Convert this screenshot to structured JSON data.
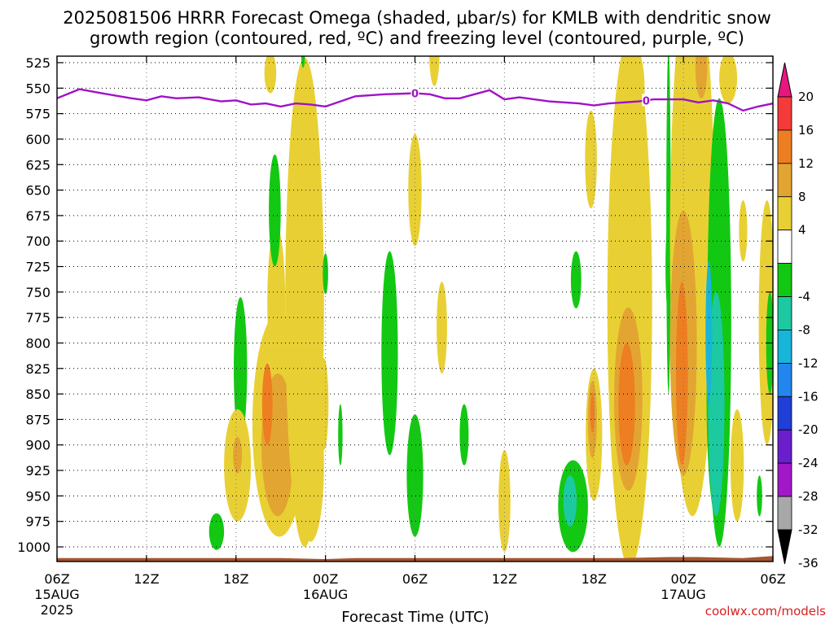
{
  "chart_data": {
    "type": "heatmap",
    "title_line1": "2025081506 HRRR Forecast Omega (shaded, μbar/s) for KMLB with dendritic snow",
    "title_line2": "growth region (contoured, red, ºC) and freezing level (contoured, purple, ºC)",
    "xlabel": "Forecast Time (UTC)",
    "credit": "coolwx.com/models",
    "x_ticks": [
      {
        "hour": 0,
        "label": "06Z",
        "sub1": "15AUG",
        "sub2": "2025"
      },
      {
        "hour": 6,
        "label": "12Z",
        "sub1": "",
        "sub2": ""
      },
      {
        "hour": 12,
        "label": "18Z",
        "sub1": "",
        "sub2": ""
      },
      {
        "hour": 18,
        "label": "00Z",
        "sub1": "16AUG",
        "sub2": ""
      },
      {
        "hour": 24,
        "label": "06Z",
        "sub1": "",
        "sub2": ""
      },
      {
        "hour": 30,
        "label": "12Z",
        "sub1": "",
        "sub2": ""
      },
      {
        "hour": 36,
        "label": "18Z",
        "sub1": "",
        "sub2": ""
      },
      {
        "hour": 42,
        "label": "00Z",
        "sub1": "17AUG",
        "sub2": ""
      },
      {
        "hour": 48,
        "label": "06Z",
        "sub1": "",
        "sub2": ""
      }
    ],
    "x_range_hours": [
      0,
      48
    ],
    "y_ticks_hpa": [
      525,
      550,
      575,
      600,
      625,
      650,
      675,
      700,
      725,
      750,
      775,
      800,
      825,
      850,
      875,
      900,
      925,
      950,
      975,
      1000
    ],
    "y_range_hpa": [
      515,
      1015
    ],
    "colorbar": {
      "labels": [
        "20",
        "16",
        "12",
        "8",
        "4",
        "-4",
        "-8",
        "-12",
        "-16",
        "-20",
        "-24",
        "-28",
        "-32",
        "-36"
      ],
      "segments": [
        {
          "lo": 20,
          "hi": 24,
          "color": "#e8177f"
        },
        {
          "lo": 16,
          "hi": 20,
          "color": "#f53a3a"
        },
        {
          "lo": 12,
          "hi": 16,
          "color": "#ee7e22"
        },
        {
          "lo": 8,
          "hi": 12,
          "color": "#e3a532"
        },
        {
          "lo": 4,
          "hi": 8,
          "color": "#e8d034"
        },
        {
          "lo": -4,
          "hi": 4,
          "color": "#ffffff"
        },
        {
          "lo": -8,
          "hi": -4,
          "color": "#13c813"
        },
        {
          "lo": -12,
          "hi": -8,
          "color": "#1dc9a0"
        },
        {
          "lo": -16,
          "hi": -12,
          "color": "#17b5d8"
        },
        {
          "lo": -20,
          "hi": -16,
          "color": "#2286ee"
        },
        {
          "lo": -24,
          "hi": -20,
          "color": "#1f3fd6"
        },
        {
          "lo": -28,
          "hi": -24,
          "color": "#6a1ecc"
        },
        {
          "lo": -32,
          "hi": -28,
          "color": "#a018c8"
        },
        {
          "lo": -36,
          "hi": -32,
          "color": "#a8a8a8"
        },
        {
          "lo": -40,
          "hi": -36,
          "color": "#000000"
        }
      ]
    },
    "freezing_level": {
      "color": "#a012c8",
      "contour_label": "0",
      "label_hours": [
        24,
        39.5
      ],
      "points": [
        [
          0,
          560
        ],
        [
          1.5,
          551
        ],
        [
          3,
          555
        ],
        [
          5,
          560
        ],
        [
          6,
          562
        ],
        [
          7,
          558
        ],
        [
          8,
          560
        ],
        [
          9.5,
          559
        ],
        [
          11,
          563
        ],
        [
          12,
          562
        ],
        [
          13,
          566
        ],
        [
          14,
          565
        ],
        [
          15,
          568
        ],
        [
          16,
          565
        ],
        [
          17,
          566
        ],
        [
          18,
          568
        ],
        [
          19,
          563
        ],
        [
          20,
          558
        ],
        [
          22,
          556
        ],
        [
          24,
          555
        ],
        [
          25,
          556
        ],
        [
          26,
          560
        ],
        [
          27,
          560
        ],
        [
          29,
          552
        ],
        [
          30,
          561
        ],
        [
          31,
          559
        ],
        [
          33,
          563
        ],
        [
          35,
          565
        ],
        [
          36,
          567
        ],
        [
          37,
          565
        ],
        [
          39,
          563
        ],
        [
          40,
          561
        ],
        [
          42,
          561
        ],
        [
          43,
          564
        ],
        [
          44,
          562
        ],
        [
          45,
          565
        ],
        [
          46,
          572
        ],
        [
          47,
          568
        ],
        [
          48,
          565
        ]
      ]
    },
    "omega_regions": [
      {
        "hour": 14.7,
        "p": 760,
        "dh": 0.6,
        "dp": 75,
        "value": 6
      },
      {
        "hour": 12.3,
        "p": 825,
        "dh": 0.45,
        "dp": 70,
        "value": -6
      },
      {
        "hour": 12.1,
        "p": 920,
        "dh": 0.9,
        "dp": 55,
        "value": 6
      },
      {
        "hour": 12.1,
        "p": 910,
        "dh": 0.3,
        "dp": 18,
        "value": 10
      },
      {
        "hour": 10.7,
        "p": 985,
        "dh": 0.5,
        "dp": 18,
        "value": -6
      },
      {
        "hour": 14.9,
        "p": 880,
        "dh": 1.8,
        "dp": 110,
        "value": 6
      },
      {
        "hour": 14.8,
        "p": 900,
        "dh": 1.1,
        "dp": 70,
        "value": 10
      },
      {
        "hour": 14.1,
        "p": 860,
        "dh": 0.35,
        "dp": 40,
        "value": 14
      },
      {
        "hour": 16.6,
        "p": 760,
        "dh": 1.3,
        "dp": 240,
        "value": 6
      },
      {
        "hour": 17.0,
        "p": 920,
        "dh": 0.9,
        "dp": 75,
        "value": 6
      },
      {
        "hour": 14.3,
        "p": 535,
        "dh": 0.4,
        "dp": 20,
        "value": 6
      },
      {
        "hour": 16.5,
        "p": 520,
        "dh": 0.12,
        "dp": 10,
        "value": -6
      },
      {
        "hour": 14.6,
        "p": 670,
        "dh": 0.4,
        "dp": 55,
        "value": -6
      },
      {
        "hour": 17.9,
        "p": 860,
        "dh": 0.3,
        "dp": 45,
        "value": 6
      },
      {
        "hour": 18.0,
        "p": 732,
        "dh": 0.18,
        "dp": 20,
        "value": -6
      },
      {
        "hour": 19.0,
        "p": 890,
        "dh": 0.15,
        "dp": 30,
        "value": -6
      },
      {
        "hour": 22.3,
        "p": 810,
        "dh": 0.55,
        "dp": 100,
        "value": -6
      },
      {
        "hour": 24.0,
        "p": 650,
        "dh": 0.45,
        "dp": 55,
        "value": 6
      },
      {
        "hour": 24.0,
        "p": 930,
        "dh": 0.55,
        "dp": 60,
        "value": -6
      },
      {
        "hour": 25.3,
        "p": 513,
        "dh": 0.35,
        "dp": 35,
        "value": 6
      },
      {
        "hour": 25.8,
        "p": 785,
        "dh": 0.35,
        "dp": 45,
        "value": 6
      },
      {
        "hour": 27.3,
        "p": 890,
        "dh": 0.3,
        "dp": 30,
        "value": -6
      },
      {
        "hour": 30.0,
        "p": 955,
        "dh": 0.4,
        "dp": 50,
        "value": 6
      },
      {
        "hour": 34.6,
        "p": 960,
        "dh": 1.0,
        "dp": 45,
        "value": -6
      },
      {
        "hour": 34.4,
        "p": 955,
        "dh": 0.45,
        "dp": 25,
        "value": -10
      },
      {
        "hour": 34.8,
        "p": 738,
        "dh": 0.35,
        "dp": 28,
        "value": -6
      },
      {
        "hour": 35.8,
        "p": 620,
        "dh": 0.4,
        "dp": 48,
        "value": 6
      },
      {
        "hour": 36.0,
        "p": 890,
        "dh": 0.55,
        "dp": 65,
        "value": 6
      },
      {
        "hour": 35.9,
        "p": 875,
        "dh": 0.3,
        "dp": 38,
        "value": 10
      },
      {
        "hour": 35.9,
        "p": 868,
        "dh": 0.15,
        "dp": 20,
        "value": 14
      },
      {
        "hour": 37.4,
        "p": 740,
        "dh": 0.18,
        "dp": 25,
        "value": -6
      },
      {
        "hour": 38.4,
        "p": 760,
        "dh": 1.5,
        "dp": 260,
        "value": 6
      },
      {
        "hour": 38.4,
        "p": 790,
        "dh": 1.4,
        "dp": 120,
        "value": 6
      },
      {
        "hour": 38.3,
        "p": 855,
        "dh": 0.95,
        "dp": 90,
        "value": 10
      },
      {
        "hour": 38.2,
        "p": 860,
        "dh": 0.55,
        "dp": 60,
        "value": 14
      },
      {
        "hour": 38.5,
        "p": 550,
        "dh": 0.9,
        "dp": 45,
        "value": 6
      },
      {
        "hour": 41.0,
        "p": 680,
        "dh": 0.15,
        "dp": 170,
        "value": -6
      },
      {
        "hour": 41.0,
        "p": 725,
        "dh": 0.2,
        "dp": 45,
        "value": -6
      },
      {
        "hour": 42.6,
        "p": 700,
        "dh": 1.5,
        "dp": 270,
        "value": 6
      },
      {
        "hour": 42.8,
        "p": 560,
        "dh": 1.0,
        "dp": 55,
        "value": 6
      },
      {
        "hour": 43.2,
        "p": 530,
        "dh": 0.4,
        "dp": 30,
        "value": 10
      },
      {
        "hour": 42.0,
        "p": 800,
        "dh": 0.9,
        "dp": 130,
        "value": 10
      },
      {
        "hour": 41.9,
        "p": 830,
        "dh": 0.4,
        "dp": 90,
        "value": 14
      },
      {
        "hour": 45.0,
        "p": 540,
        "dh": 0.6,
        "dp": 25,
        "value": 6
      },
      {
        "hour": 44.4,
        "p": 780,
        "dh": 0.8,
        "dp": 220,
        "value": -6
      },
      {
        "hour": 44.3,
        "p": 855,
        "dh": 0.75,
        "dp": 120,
        "value": -6
      },
      {
        "hour": 44.2,
        "p": 860,
        "dh": 0.55,
        "dp": 110,
        "value": -10
      },
      {
        "hour": 43.7,
        "p": 790,
        "dh": 0.22,
        "dp": 70,
        "value": -14
      },
      {
        "hour": 45.6,
        "p": 920,
        "dh": 0.45,
        "dp": 55,
        "value": 6
      },
      {
        "hour": 46.0,
        "p": 690,
        "dh": 0.28,
        "dp": 30,
        "value": 6
      },
      {
        "hour": 47.1,
        "p": 950,
        "dh": 0.18,
        "dp": 20,
        "value": -6
      },
      {
        "hour": 47.6,
        "p": 780,
        "dh": 0.55,
        "dp": 120,
        "value": 6
      },
      {
        "hour": 47.8,
        "p": 800,
        "dh": 0.25,
        "dp": 50,
        "value": -6
      }
    ],
    "terrain": {
      "color": "#a35630",
      "top_hpa": 1011,
      "ridge_points": [
        [
          15,
          1011
        ],
        [
          18,
          1012
        ],
        [
          20,
          1011
        ],
        [
          38,
          1011
        ],
        [
          41,
          1010
        ],
        [
          43,
          1010
        ],
        [
          46,
          1011
        ],
        [
          48,
          1009
        ]
      ]
    }
  }
}
